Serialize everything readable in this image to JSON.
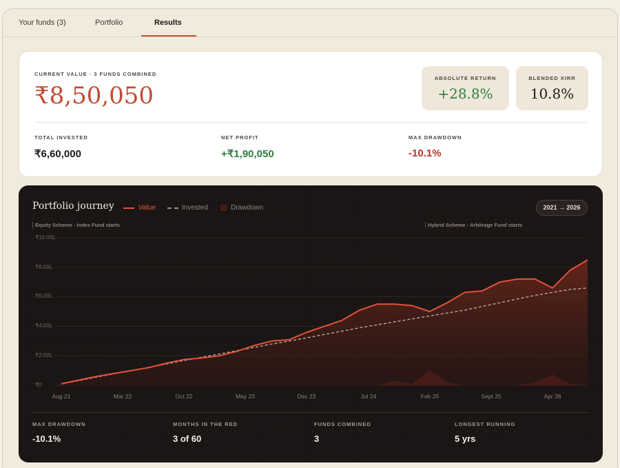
{
  "tabs": [
    {
      "label": "Your funds (3)"
    },
    {
      "label": "Portfolio"
    },
    {
      "label": "Results"
    }
  ],
  "summary": {
    "current_value_caption": "CURRENT VALUE · 3 FUNDS COMBINED",
    "current_value": "₹8,50,050",
    "absolute_return_label": "ABSOLUTE RETURN",
    "absolute_return": "+28.8%",
    "blended_xirr_label": "BLENDED XIRR",
    "blended_xirr": "10.8%",
    "total_invested_label": "TOTAL INVESTED",
    "total_invested": "₹6,60,000",
    "net_profit_label": "NET PROFIT",
    "net_profit": "+₹1,90,050",
    "max_drawdown_label": "MAX DRAWDOWN",
    "max_drawdown": "-10.1%"
  },
  "colors": {
    "accent": "#c24a34",
    "positive": "#2e7d3e",
    "negative": "#b4342a",
    "value_line": "#e0543a",
    "invested_line": "#b5aaa3",
    "drawdown": "#4a1c17"
  },
  "journey": {
    "title": "Portfolio journey",
    "legend": {
      "value": "Value",
      "invested": "Invested",
      "drawdown": "Drawdown"
    },
    "range": "2021 → 2026",
    "events": {
      "left": "Equity Scheme - Index Fund starts",
      "right": "Hybrid Scheme - Arbitrage Fund starts"
    },
    "bottom": {
      "max_drawdown_label": "MAX DRAWDOWN",
      "max_drawdown": "-10.1%",
      "months_red_label": "MONTHS IN THE RED",
      "months_red": "3 of 60",
      "funds_label": "FUNDS COMBINED",
      "funds": "3",
      "longest_label": "LONGEST RUNNING",
      "longest": "5 yrs"
    }
  },
  "chart_data": {
    "type": "area",
    "y_tick_labels": [
      "₹10.00L",
      "₹8.00L",
      "₹6.00L",
      "₹4.00L",
      "₹2.00L",
      "₹0"
    ],
    "ylim": [
      0,
      10
    ],
    "x_tick_labels": [
      "Aug 21",
      "Mar 22",
      "Oct 22",
      "May 23",
      "Dec 23",
      "Jul 24",
      "Feb 25",
      "Sept 25",
      "Apr 26"
    ],
    "x": [
      0,
      2,
      4,
      6,
      8,
      10,
      12,
      14,
      16,
      18,
      20,
      22,
      24,
      26,
      28,
      30,
      32,
      34,
      36,
      38,
      40,
      42,
      44,
      46,
      48,
      50,
      52,
      54,
      56,
      58,
      60
    ],
    "series": [
      {
        "name": "Value",
        "values": [
          0.1,
          0.35,
          0.6,
          0.8,
          1.0,
          1.2,
          1.5,
          1.75,
          1.85,
          2.0,
          2.3,
          2.7,
          3.0,
          3.1,
          3.6,
          4.0,
          4.4,
          5.1,
          5.5,
          5.5,
          5.4,
          5.0,
          5.6,
          6.3,
          6.4,
          7.0,
          7.2,
          7.2,
          6.6,
          7.8,
          8.5
        ]
      },
      {
        "name": "Invested",
        "values": [
          0.1,
          0.32,
          0.55,
          0.78,
          1.0,
          1.22,
          1.45,
          1.68,
          1.9,
          2.12,
          2.35,
          2.57,
          2.8,
          3.0,
          3.22,
          3.45,
          3.67,
          3.9,
          4.1,
          4.3,
          4.5,
          4.7,
          4.9,
          5.1,
          5.35,
          5.6,
          5.85,
          6.1,
          6.3,
          6.5,
          6.6
        ]
      },
      {
        "name": "Drawdown",
        "values": [
          0,
          0,
          0,
          0,
          0,
          0,
          0,
          0,
          0,
          0,
          0,
          0,
          0,
          0,
          0,
          0,
          0,
          0,
          0,
          0.3,
          0.1,
          1.0,
          0.2,
          0,
          0,
          0,
          0,
          0.2,
          0.7,
          0.1,
          0
        ]
      }
    ]
  }
}
